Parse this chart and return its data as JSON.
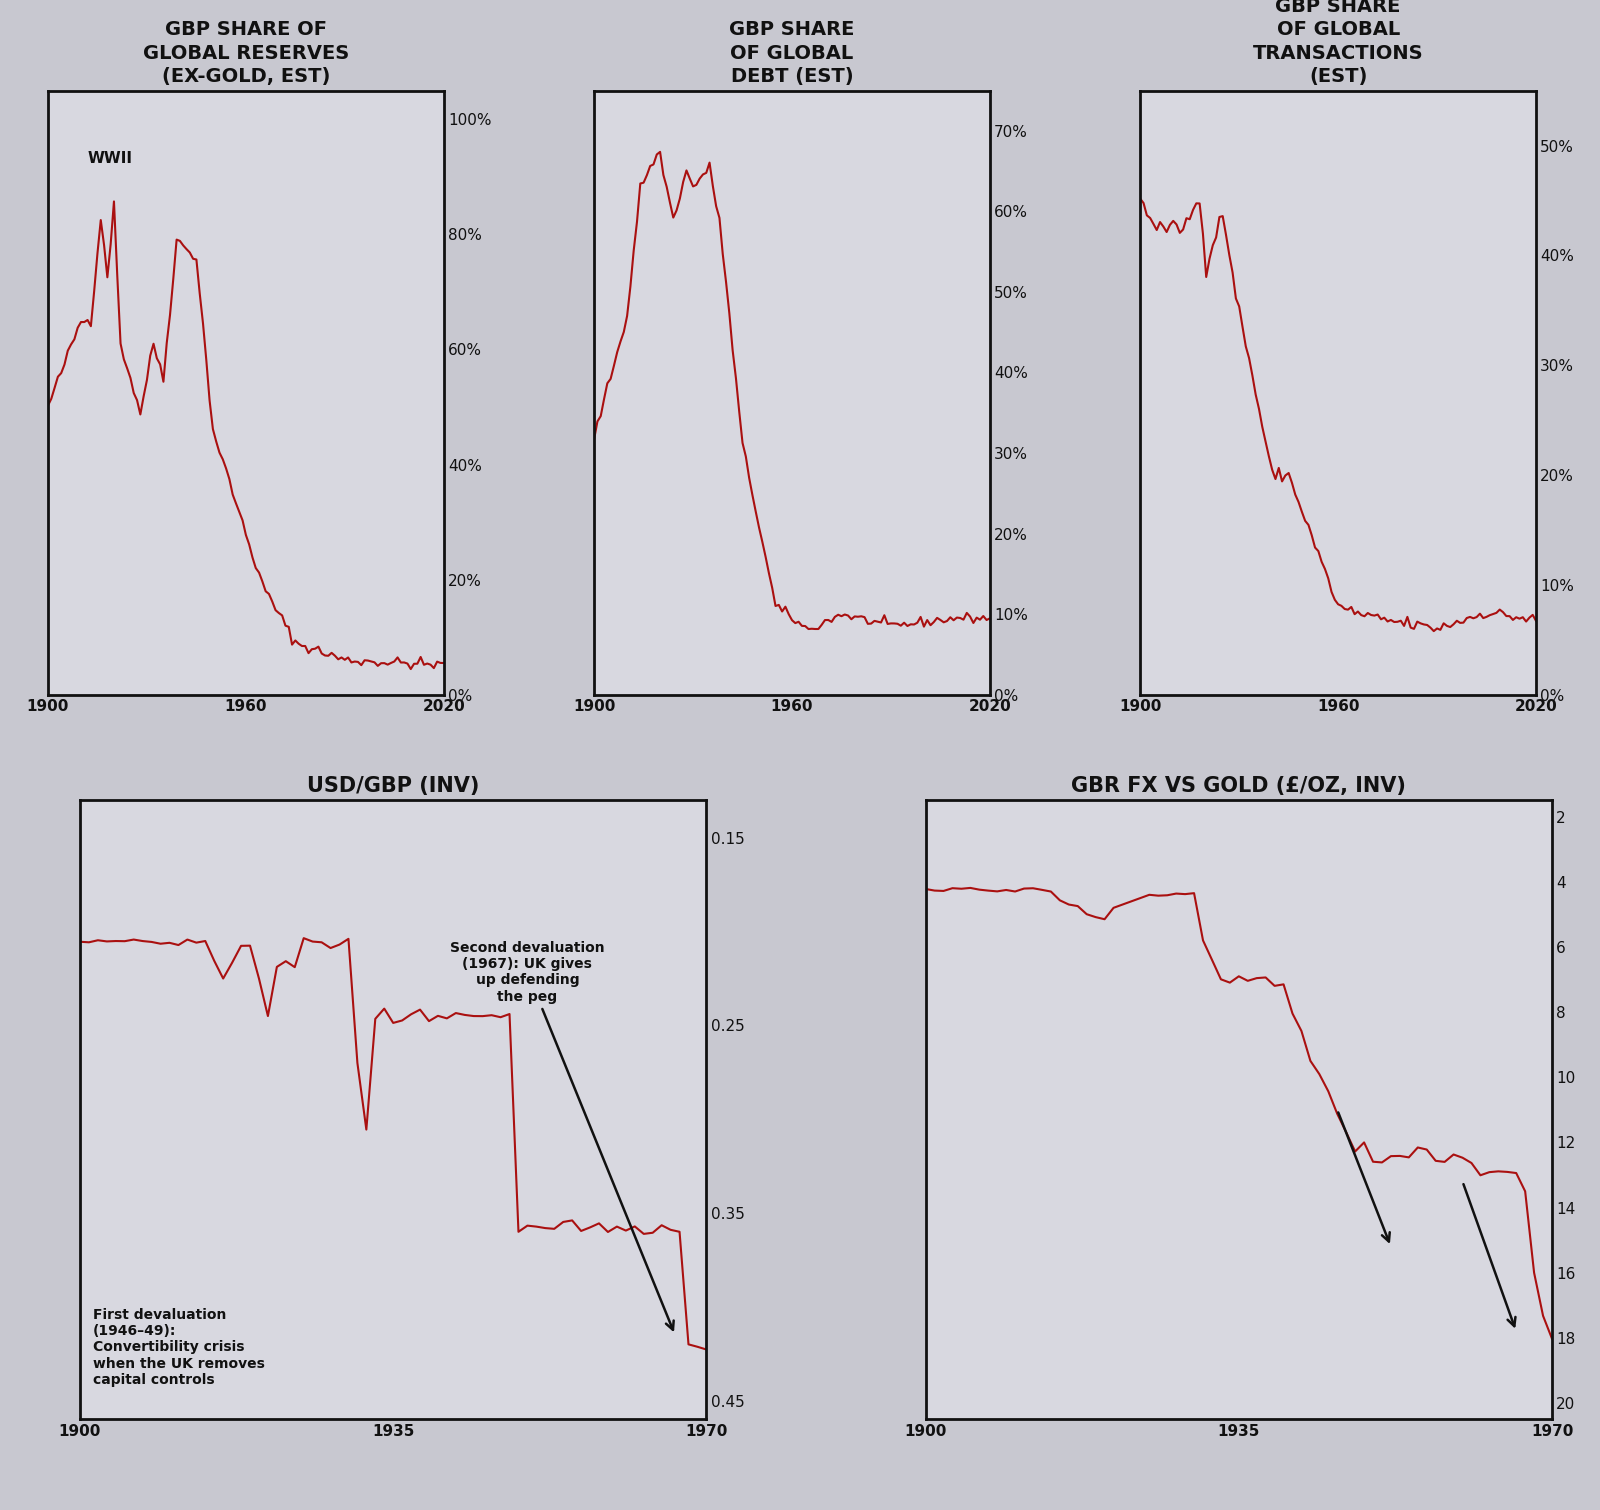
{
  "bg_color": "#c8c8d0",
  "plot_bg_color": "#d8d8e0",
  "line_color": "#aa1010",
  "text_color": "#111111",
  "title1": "GBP SHARE OF\nGLOBAL RESERVES\n(EX-GOLD, EST)",
  "title2": "GBP SHARE\nOF GLOBAL\nDEBT (EST)",
  "title3": "GBP SHARE\nOF GLOBAL\nTRANSACTIONS\n(EST)",
  "title4": "USD/GBP (INV)",
  "title5": "GBR FX VS GOLD (£/OZ, INV)",
  "ann4_text1": "Second devaluation\n(1967): UK gives\nup defending\nthe peg",
  "ann4_text2": "First devaluation\n(1946–49):\nConvertibility crisis\nwhen the UK removes\ncapital controls"
}
